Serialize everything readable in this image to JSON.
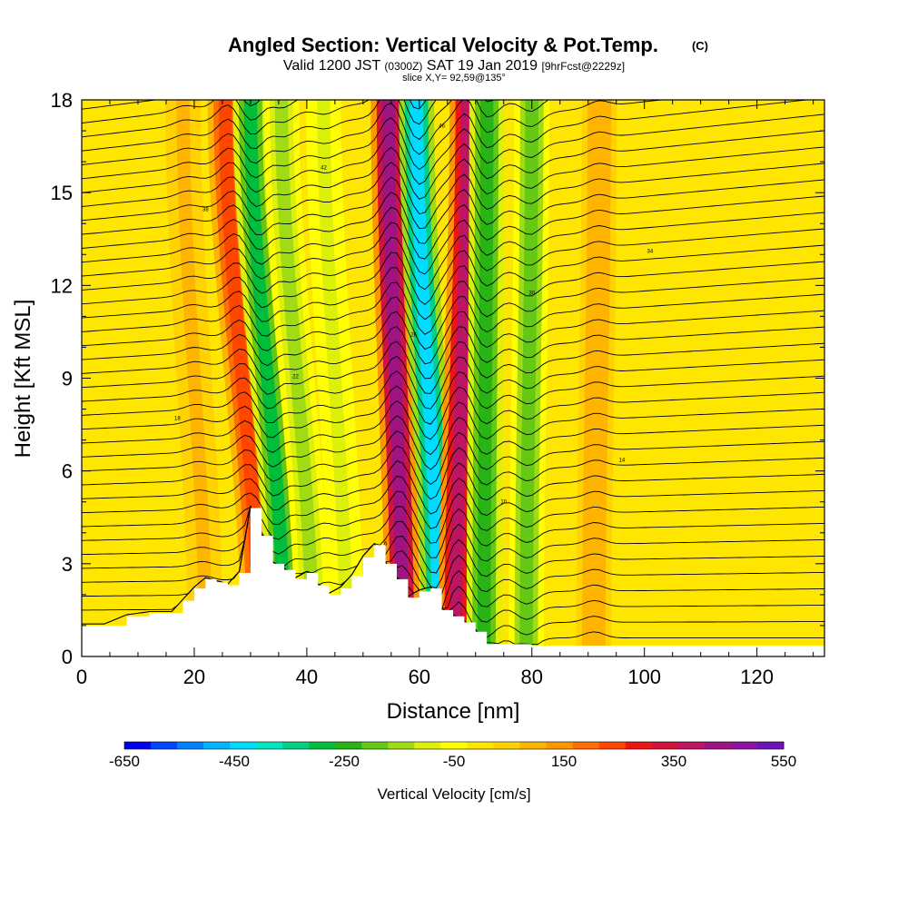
{
  "header": {
    "title": "Angled Section: Vertical Velocity & Pot.Temp.",
    "title_tag": "(C)",
    "valid_prefix": "Valid 1200 JST",
    "valid_zone": "(0300Z)",
    "valid_date": "SAT 19 Jan 2019",
    "forecast": "[9hrFcst@2229z]",
    "slice": "slice X,Y= 92,59@135°"
  },
  "chart_data": {
    "type": "heatmap",
    "xlabel": "Distance [nm]",
    "ylabel": "Height [Kft MSL]",
    "xlim": [
      0,
      132
    ],
    "ylim": [
      0,
      18
    ],
    "x_ticks": [
      "0",
      "20",
      "40",
      "60",
      "80",
      "100",
      "120"
    ],
    "y_ticks": [
      "0",
      "3",
      "6",
      "9",
      "12",
      "15",
      "18"
    ],
    "grid": false,
    "colorbar": {
      "label": "Vertical Velocity [cm/s]",
      "tick_labels": [
        "-650",
        "-450",
        "-250",
        "-50",
        "150",
        "350",
        "550"
      ],
      "colors": [
        "#0000f0",
        "#0046ff",
        "#0082ff",
        "#00b4ff",
        "#00dcff",
        "#00e6be",
        "#00d282",
        "#00be3c",
        "#28b414",
        "#64c814",
        "#a0dc14",
        "#dcf00a",
        "#ffff00",
        "#ffe600",
        "#ffd200",
        "#ffb400",
        "#ff9600",
        "#ff6e00",
        "#ff4600",
        "#f01414",
        "#d2143c",
        "#be1464",
        "#a01482",
        "#8c14a0",
        "#6e14b4"
      ]
    },
    "vertical_velocity_bands": [
      {
        "x_base": 31.5,
        "x_top": 25.5,
        "value": 250
      },
      {
        "x_base": 36,
        "x_top": 30,
        "value": -300
      },
      {
        "x_base": 41,
        "x_top": 35.5,
        "value": -150
      },
      {
        "x_base": 47,
        "x_top": 43,
        "value": -100
      },
      {
        "x_base": 57,
        "x_top": 54.5,
        "value": 450
      },
      {
        "x_base": 63.5,
        "x_top": 59.5,
        "value": -450
      },
      {
        "x_base": 66.5,
        "x_top": 68.5,
        "value": 400
      },
      {
        "x_base": 71.5,
        "x_top": 72,
        "value": -250
      },
      {
        "x_base": 79,
        "x_top": 80,
        "value": -200
      },
      {
        "x_base": 22,
        "x_top": 18,
        "value": 80
      },
      {
        "x_base": 91,
        "x_top": 92,
        "value": 100
      }
    ],
    "terrain_profile": {
      "x": [
        0,
        4,
        8,
        12,
        16,
        18,
        20,
        22,
        24,
        26,
        28,
        30,
        32,
        34,
        36,
        38,
        40,
        42,
        44,
        46,
        48,
        50,
        52,
        54,
        56,
        58,
        60,
        62,
        64,
        66,
        68,
        70,
        72,
        80,
        100,
        132
      ],
      "y": [
        1.0,
        1.0,
        1.3,
        1.4,
        1.4,
        1.8,
        2.2,
        2.5,
        2.4,
        2.3,
        2.7,
        4.8,
        3.9,
        3.0,
        2.8,
        2.5,
        2.7,
        2.3,
        2.0,
        2.2,
        2.6,
        3.2,
        3.6,
        3.0,
        2.5,
        1.9,
        2.1,
        2.2,
        1.5,
        1.3,
        1.1,
        0.8,
        0.4,
        0.35,
        0.35,
        0.3
      ]
    },
    "theta_contours": {
      "levels": [
        "-1",
        "0",
        "2",
        "4",
        "6",
        "8",
        "10",
        "12",
        "14",
        "16",
        "18",
        "20",
        "22",
        "24",
        "26",
        "28",
        "30",
        "32",
        "34",
        "36",
        "38",
        "40",
        "42",
        "44",
        "46",
        "48",
        "50"
      ]
    }
  }
}
